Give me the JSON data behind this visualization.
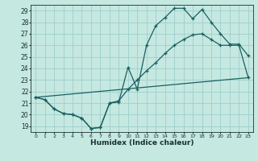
{
  "xlabel": "Humidex (Indice chaleur)",
  "bg_color": "#c5e8e0",
  "grid_color": "#9ecece",
  "line_color": "#1a6060",
  "xlim": [
    -0.5,
    23.5
  ],
  "ylim": [
    18.5,
    29.5
  ],
  "xticks": [
    0,
    1,
    2,
    3,
    4,
    5,
    6,
    7,
    8,
    9,
    10,
    11,
    12,
    13,
    14,
    15,
    16,
    17,
    18,
    19,
    20,
    21,
    22,
    23
  ],
  "yticks": [
    19,
    20,
    21,
    22,
    23,
    24,
    25,
    26,
    27,
    28,
    29
  ],
  "line1_x": [
    0,
    1,
    2,
    3,
    4,
    5,
    6,
    7,
    8,
    9,
    10,
    11,
    12,
    13,
    14,
    15,
    16,
    17,
    18,
    19,
    20,
    21,
    22,
    23
  ],
  "line1_y": [
    21.5,
    21.3,
    20.5,
    20.1,
    20.0,
    19.7,
    18.8,
    18.9,
    21.0,
    21.1,
    24.1,
    22.2,
    26.0,
    27.7,
    28.4,
    29.2,
    29.2,
    28.3,
    29.1,
    28.0,
    27.0,
    26.1,
    26.1,
    25.1
  ],
  "line2_x": [
    0,
    1,
    2,
    3,
    4,
    5,
    6,
    7,
    8,
    9,
    10,
    11,
    12,
    13,
    14,
    15,
    16,
    17,
    18,
    19,
    20,
    21,
    22,
    23
  ],
  "line2_y": [
    21.5,
    21.3,
    20.5,
    20.1,
    20.0,
    19.7,
    18.8,
    18.9,
    21.0,
    21.2,
    22.2,
    23.0,
    23.8,
    24.5,
    25.3,
    26.0,
    26.5,
    26.9,
    27.0,
    26.5,
    26.0,
    26.0,
    26.0,
    23.2
  ],
  "line3_x": [
    0,
    23
  ],
  "line3_y": [
    21.5,
    23.2
  ],
  "marker": "+"
}
